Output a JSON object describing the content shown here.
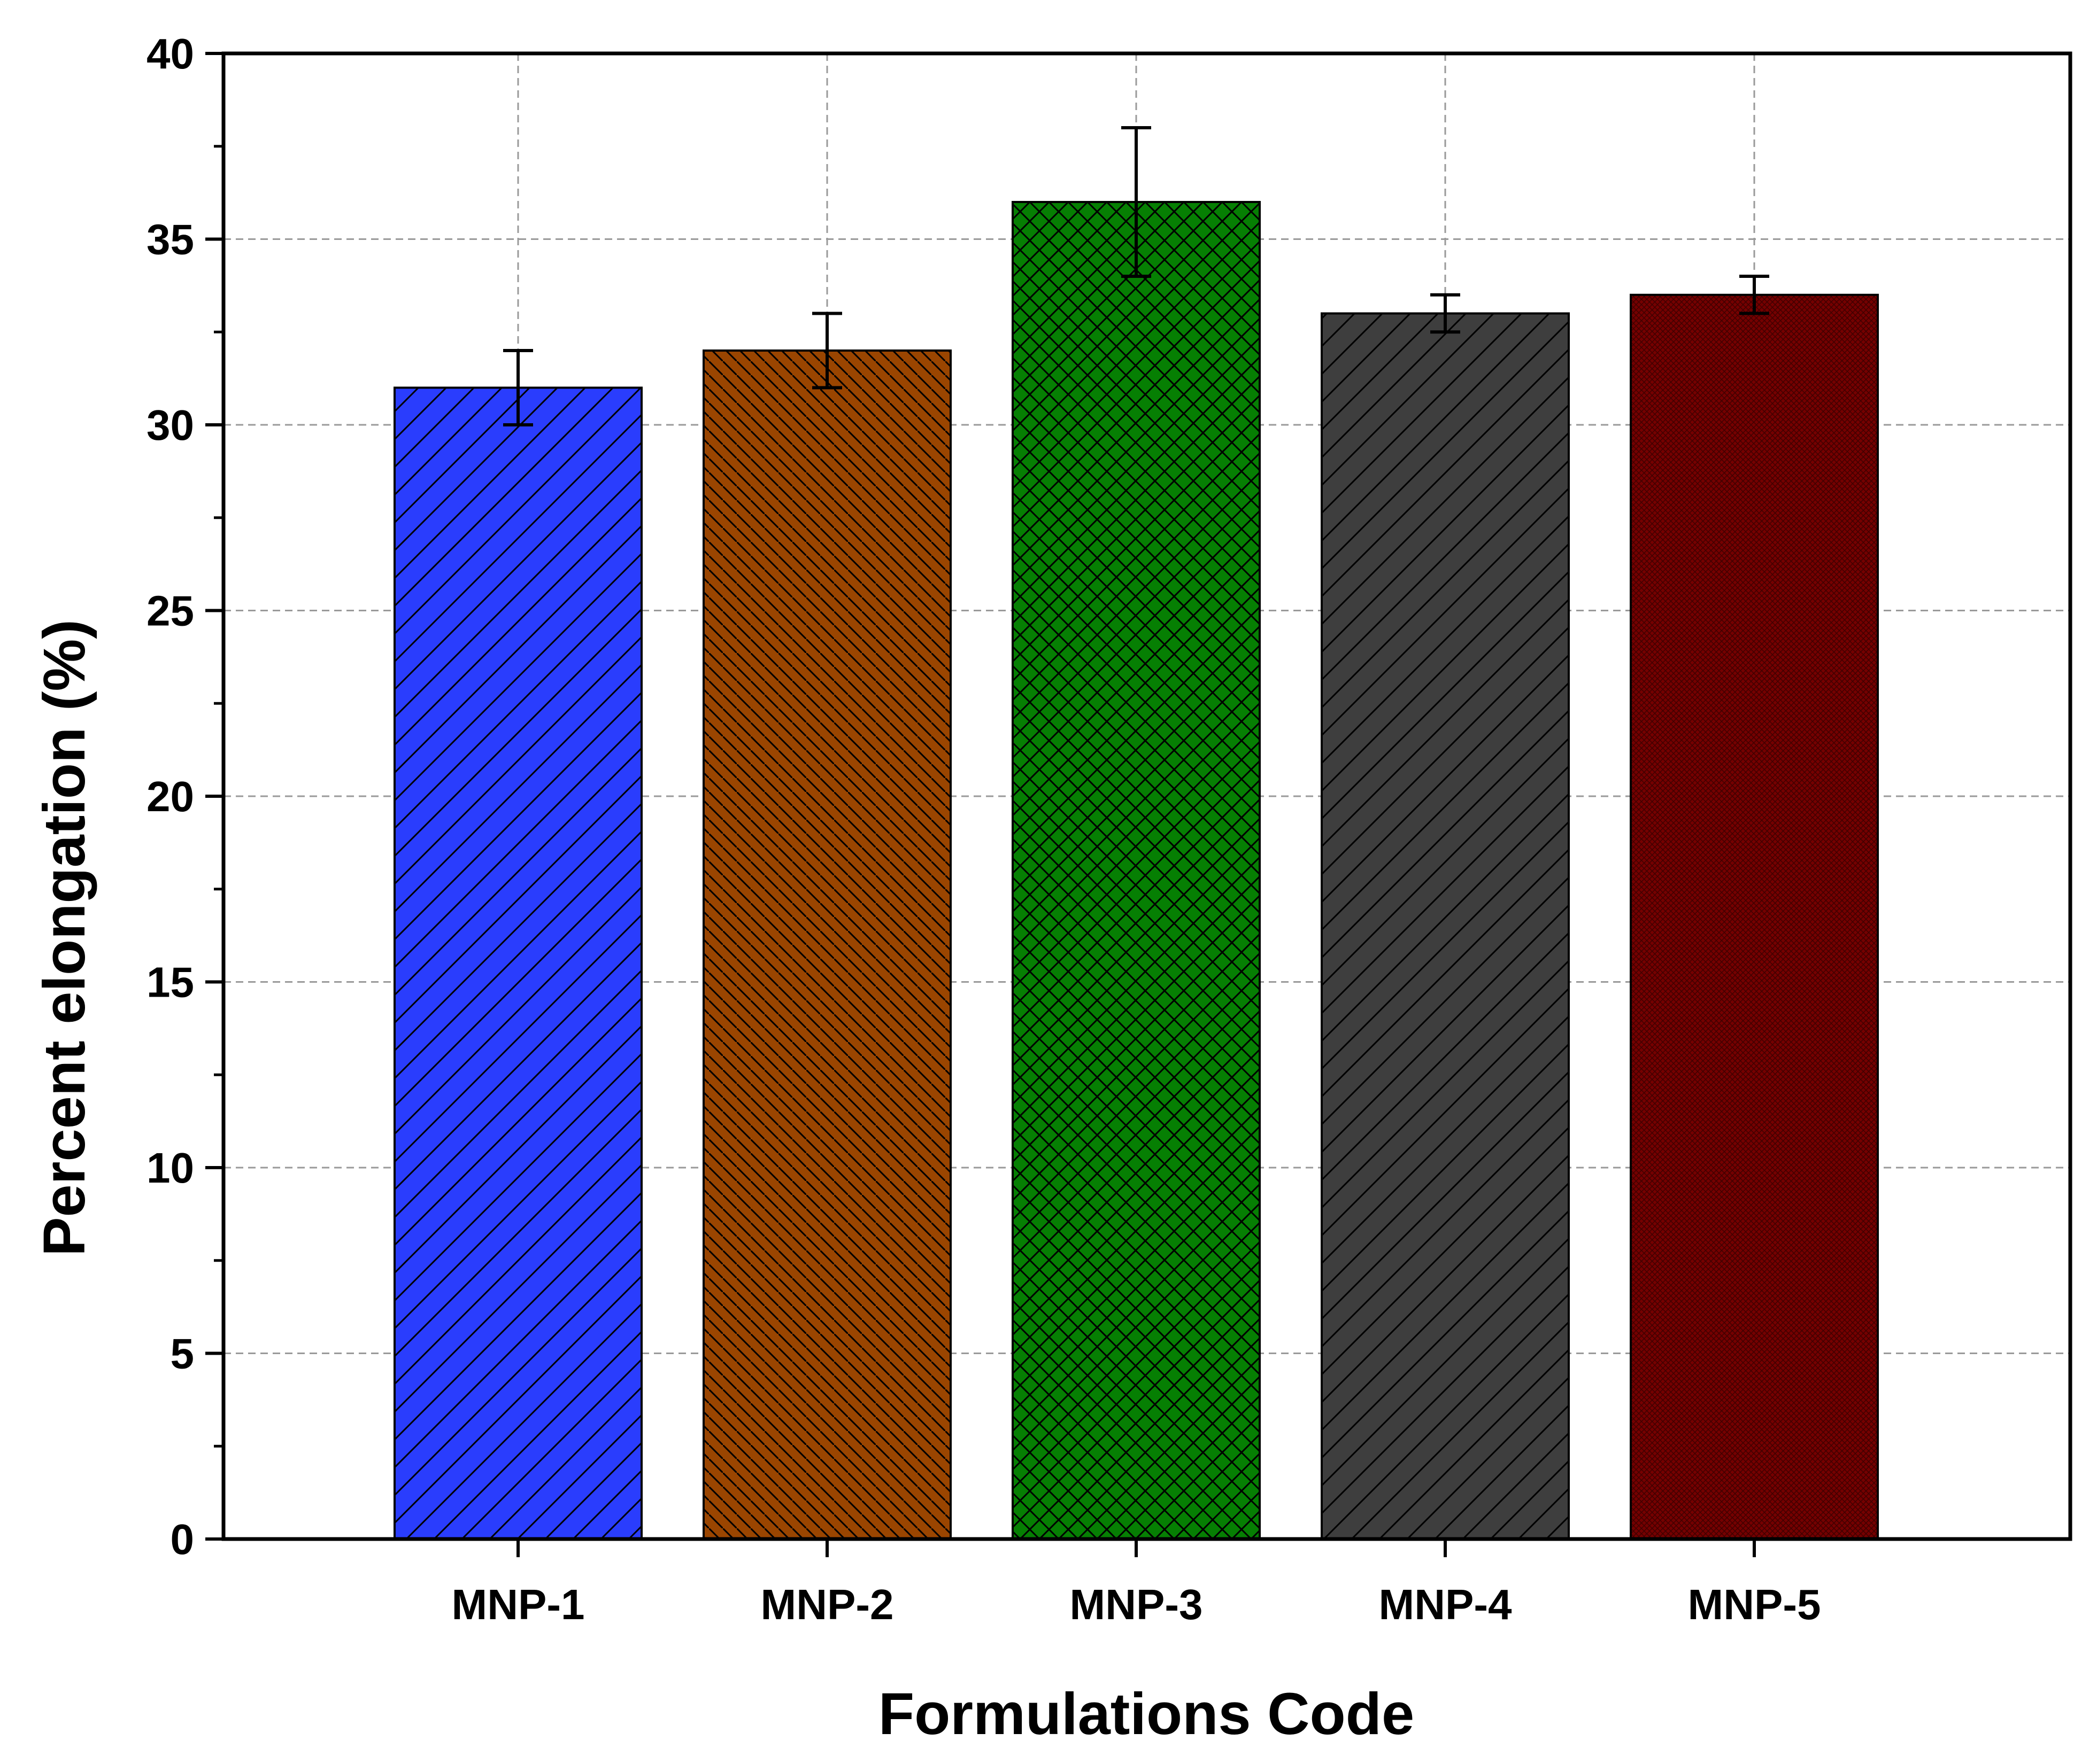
{
  "chart_data": {
    "type": "bar",
    "title": "",
    "xlabel": "Formulations Code",
    "ylabel": "Percent elongation (%)",
    "categories": [
      "MNP-1",
      "MNP-2",
      "MNP-3",
      "MNP-4",
      "MNP-5"
    ],
    "values": [
      31,
      32,
      36,
      33,
      33.5
    ],
    "errors": [
      1,
      1,
      2,
      0.5,
      0.5
    ],
    "ylim": [
      0,
      40
    ],
    "yticks": [
      "0",
      "5",
      "10",
      "15",
      "20",
      "25",
      "30",
      "35",
      "40"
    ],
    "grid": true,
    "legend": "none",
    "bar_colors": [
      "#2a3dfd",
      "#9a4500",
      "#067f03",
      "#3e3e3e",
      "#750000"
    ],
    "bar_patterns": [
      "right-diagonal",
      "left-diagonal",
      "crosshatch",
      "right-diagonal",
      "dense"
    ]
  }
}
